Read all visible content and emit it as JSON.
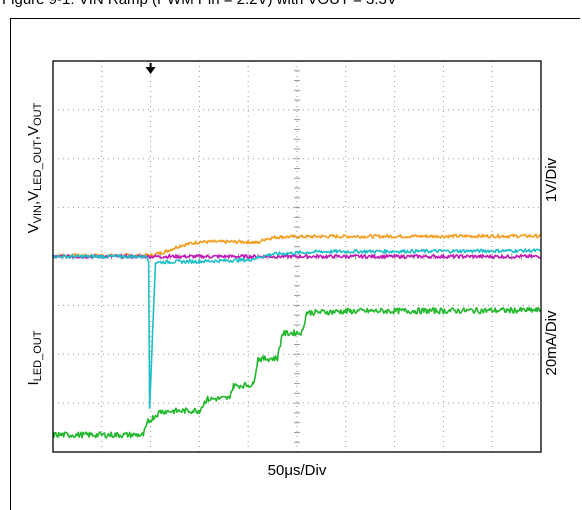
{
  "caption_fragment": "Figure 9-1: VIN Ramp (PWM Pin = 2.2V) with VOUT = 3.3V",
  "chart_data": {
    "type": "line",
    "title": "",
    "x_label": "50μs/Div",
    "x_divisions": 10,
    "y_divisions": 8,
    "upper_scale": "1V/Div",
    "lower_scale": "20mA/Div",
    "upper_axis_label": {
      "main_v": "V",
      "vin_sub": "VIN",
      "sep1": ",V",
      "led_sub": "LED_OUT",
      "sep2": ",V",
      "out_sub": "OUT"
    },
    "lower_axis_label": {
      "main_i": "I",
      "led_sub": "LED_OUT"
    },
    "trigger_marker_division": 2.0,
    "series": [
      {
        "name": "",
        "color": "#f59d1f",
        "points": [
          [
            0,
            4.02
          ],
          [
            2.0,
            4.02
          ],
          [
            2.3,
            4.1
          ],
          [
            2.6,
            4.22
          ],
          [
            3.0,
            4.3
          ],
          [
            4.0,
            4.3
          ],
          [
            4.2,
            4.28
          ],
          [
            4.35,
            4.36
          ],
          [
            4.6,
            4.4
          ],
          [
            5.5,
            4.41
          ],
          [
            10,
            4.42
          ]
        ]
      },
      {
        "name": "",
        "color": "#c21ab8",
        "points": [
          [
            0,
            4.0
          ],
          [
            10,
            4.0
          ]
        ]
      },
      {
        "name": "",
        "color": "#1cbfc8",
        "points": [
          [
            0,
            4.0
          ],
          [
            1.93,
            4.0
          ],
          [
            1.96,
            3.88
          ],
          [
            1.98,
            0.92
          ],
          [
            2.1,
            3.88
          ],
          [
            2.4,
            3.89
          ],
          [
            3.0,
            3.9
          ],
          [
            4.0,
            3.93
          ],
          [
            4.5,
            4.05
          ],
          [
            5.5,
            4.1
          ],
          [
            10,
            4.12
          ]
        ]
      },
      {
        "name": "",
        "color": "#22b82c",
        "points": [
          [
            0,
            0.35
          ],
          [
            1.85,
            0.35
          ],
          [
            1.95,
            0.62
          ],
          [
            2.2,
            0.83
          ],
          [
            3.0,
            0.85
          ],
          [
            3.15,
            1.08
          ],
          [
            3.6,
            1.1
          ],
          [
            3.7,
            1.35
          ],
          [
            4.1,
            1.38
          ],
          [
            4.2,
            1.9
          ],
          [
            4.6,
            1.92
          ],
          [
            4.7,
            2.42
          ],
          [
            5.1,
            2.45
          ],
          [
            5.2,
            2.85
          ],
          [
            6.0,
            2.88
          ],
          [
            10,
            2.9
          ]
        ]
      }
    ]
  }
}
